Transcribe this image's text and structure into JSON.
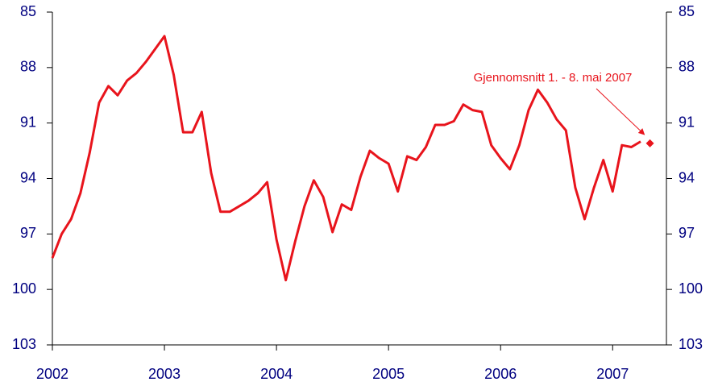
{
  "chart_data": {
    "type": "line",
    "x": [
      2002,
      2002.083,
      2002.167,
      2002.25,
      2002.333,
      2002.417,
      2002.5,
      2002.583,
      2002.667,
      2002.75,
      2002.833,
      2002.917,
      2003,
      2003.083,
      2003.167,
      2003.25,
      2003.333,
      2003.417,
      2003.5,
      2003.583,
      2003.667,
      2003.75,
      2003.833,
      2003.917,
      2004,
      2004.083,
      2004.167,
      2004.25,
      2004.333,
      2004.417,
      2004.5,
      2004.583,
      2004.667,
      2004.75,
      2004.833,
      2004.917,
      2005,
      2005.083,
      2005.167,
      2005.25,
      2005.333,
      2005.417,
      2005.5,
      2005.583,
      2005.667,
      2005.75,
      2005.833,
      2005.917,
      2006,
      2006.083,
      2006.167,
      2006.25,
      2006.333,
      2006.417,
      2006.5,
      2006.583,
      2006.667,
      2006.75,
      2006.833,
      2006.917,
      2007,
      2007.083,
      2007.167,
      2007.25
    ],
    "series": [
      {
        "color": "#e8141c",
        "values": [
          98.3,
          97.0,
          96.2,
          94.8,
          92.6,
          89.9,
          89.0,
          89.5,
          88.7,
          88.3,
          87.7,
          87.0,
          86.3,
          88.4,
          91.5,
          91.5,
          90.4,
          93.7,
          95.8,
          95.8,
          95.5,
          95.2,
          94.8,
          94.2,
          97.3,
          99.5,
          97.4,
          95.5,
          94.1,
          95.0,
          96.9,
          95.4,
          95.7,
          93.9,
          92.5,
          92.9,
          93.2,
          94.7,
          92.8,
          93.0,
          92.3,
          91.1,
          91.1,
          90.9,
          90.0,
          90.3,
          90.4,
          92.2,
          92.9,
          93.5,
          92.2,
          90.3,
          89.2,
          89.9,
          90.8,
          91.4,
          94.5,
          96.2,
          94.5,
          93.0,
          94.7,
          92.2,
          92.3,
          92.0
        ]
      }
    ],
    "annotation": {
      "text": "Gjennomsnitt 1. - 8. mai 2007",
      "x": 2007.333,
      "value": 92.1,
      "color": "#e8141c"
    },
    "xlim": [
      2002,
      2007.48
    ],
    "xticks": [
      2002,
      2003,
      2004,
      2005,
      2006,
      2007
    ],
    "ylim": [
      103,
      85
    ],
    "yticks": [
      85,
      88,
      91,
      94,
      97,
      100,
      103
    ],
    "y2lim": [
      103,
      85
    ],
    "y2ticks": [
      85,
      88,
      91,
      94,
      97,
      100,
      103
    ]
  }
}
